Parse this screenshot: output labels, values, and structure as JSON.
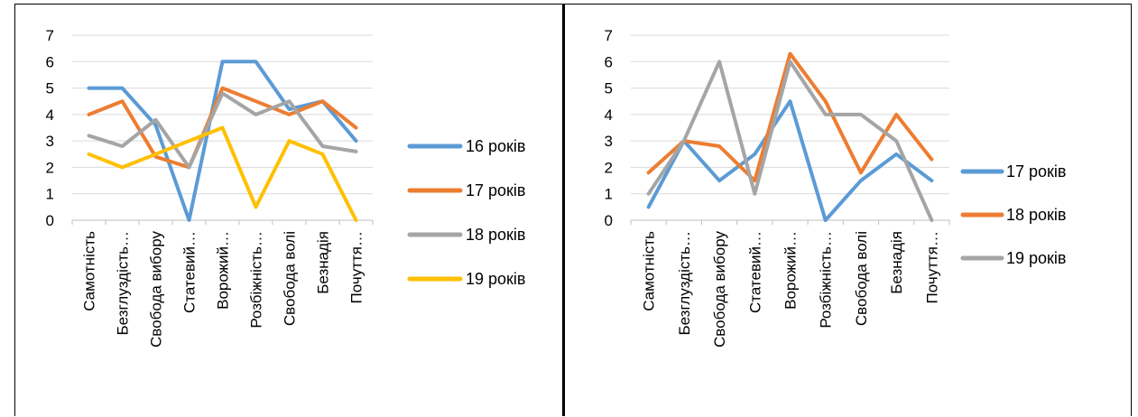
{
  "chart_data": [
    {
      "type": "line",
      "title": "",
      "xlabel": "",
      "ylabel": "",
      "ylim": [
        0,
        7
      ],
      "yticks": [
        "0",
        "1",
        "2",
        "3",
        "4",
        "5",
        "6",
        "7"
      ],
      "grid": true,
      "legend": "right",
      "categories": [
        "Самотність",
        "Безглуздість…",
        "Свобода вибору",
        "Статевий…",
        "Ворожий…",
        "Розбіжність…",
        "Свобода волі",
        "Безнадія",
        "Почуття…"
      ],
      "series": [
        {
          "name": "16 років",
          "color": "#5B9BD5",
          "values": [
            5,
            5,
            3.6,
            0,
            6,
            6,
            4.2,
            4.5,
            3
          ]
        },
        {
          "name": "17 років",
          "color": "#ED7D31",
          "values": [
            4,
            4.5,
            2.4,
            2,
            5,
            4.5,
            4,
            4.5,
            3.5
          ]
        },
        {
          "name": "18 років",
          "color": "#A5A5A5",
          "values": [
            3.2,
            2.8,
            3.8,
            2,
            4.8,
            4,
            4.5,
            2.8,
            2.6
          ]
        },
        {
          "name": "19 років",
          "color": "#FFC000",
          "values": [
            2.5,
            2,
            2.5,
            3,
            3.5,
            0.5,
            3,
            2.5,
            0
          ]
        }
      ]
    },
    {
      "type": "line",
      "title": "",
      "xlabel": "",
      "ylabel": "",
      "ylim": [
        0,
        7
      ],
      "yticks": [
        "0",
        "1",
        "2",
        "3",
        "4",
        "5",
        "6",
        "7"
      ],
      "grid": true,
      "legend": "right",
      "categories": [
        "Самотність",
        "Безглуздість…",
        "Свобода вибору",
        "Статевий…",
        "Ворожий…",
        "Розбіжність…",
        "Свобода волі",
        "Безнадія",
        "Почуття…"
      ],
      "series": [
        {
          "name": "17 років",
          "color": "#5B9BD5",
          "values": [
            0.5,
            3,
            1.5,
            2.5,
            4.5,
            0,
            1.5,
            2.5,
            1.5
          ]
        },
        {
          "name": "18 років",
          "color": "#ED7D31",
          "values": [
            1.8,
            3,
            2.8,
            1.5,
            6.3,
            4.5,
            1.8,
            4,
            2.3
          ]
        },
        {
          "name": "19 років",
          "color": "#A5A5A5",
          "values": [
            1,
            3,
            6,
            1,
            6,
            4,
            4,
            3,
            0
          ]
        }
      ]
    }
  ]
}
